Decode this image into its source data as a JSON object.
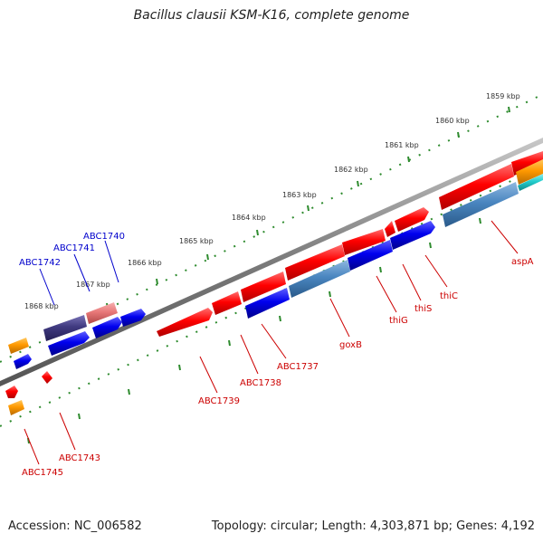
{
  "title": "Bacillus clausii KSM-K16, complete genome",
  "accession": "Accession: NC_006582",
  "stats": "Topology: circular; Length: 4,303,871 bp; Genes: 4,192",
  "colors": {
    "backbone": "#8a8a8a",
    "ruler": "#2e8b2e",
    "gene_red": "#ff0000",
    "gene_blue": "#0000ee",
    "gene_steel": "#4a86c0",
    "gene_navy": "#403a80",
    "gene_pink": "#e87878",
    "gene_orange": "#ff9900",
    "gene_cyan": "#22cccc",
    "label_red": "#cc0000",
    "label_blue": "#0000cc"
  },
  "ruler_labels": [
    "1859 kbp",
    "1860 kbp",
    "1861 kbp",
    "1862 kbp",
    "1863 kbp",
    "1864 kbp",
    "1865 kbp",
    "1866 kbp",
    "1867 kbp",
    "1868 kbp"
  ],
  "gene_labels": {
    "red": [
      "aspA",
      "thiC",
      "thiS",
      "thiG",
      "goxB",
      "ABC1737",
      "ABC1738",
      "ABC1739",
      "ABC1743",
      "ABC1745"
    ],
    "blue": [
      "ABC1740",
      "ABC1741",
      "ABC1742"
    ]
  }
}
